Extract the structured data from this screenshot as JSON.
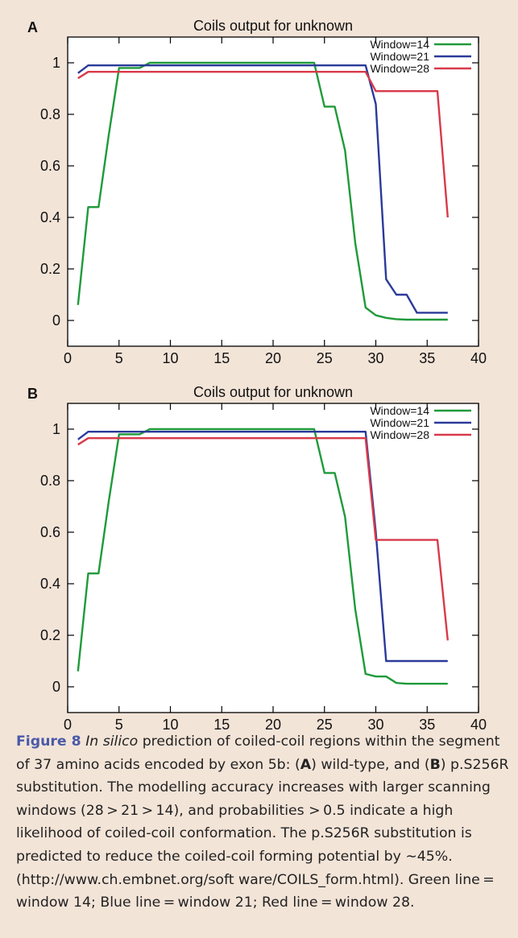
{
  "chart_data": [
    {
      "type": "line",
      "panel": "A",
      "title": "Coils output for unknown",
      "xlim": [
        0,
        40
      ],
      "ylim": [
        -0.1,
        1.1
      ],
      "xticks": [
        0,
        5,
        10,
        15,
        20,
        25,
        30,
        35,
        40
      ],
      "yticks": [
        0,
        0.2,
        0.4,
        0.6,
        0.8,
        1
      ],
      "legend_position": "top-right",
      "series": [
        {
          "name": "Window=14",
          "color": "#1f9a3a",
          "x": [
            1,
            2,
            3,
            4,
            5,
            6,
            7,
            8,
            9,
            10,
            11,
            12,
            13,
            14,
            15,
            16,
            17,
            18,
            19,
            20,
            21,
            22,
            23,
            24,
            25,
            26,
            27,
            28,
            29,
            30,
            31,
            32,
            33,
            34,
            35,
            36,
            37
          ],
          "y": [
            0.06,
            0.44,
            0.44,
            0.72,
            0.98,
            0.98,
            0.98,
            1.0,
            1.0,
            1.0,
            1.0,
            1.0,
            1.0,
            1.0,
            1.0,
            1.0,
            1.0,
            1.0,
            1.0,
            1.0,
            1.0,
            1.0,
            1.0,
            1.0,
            0.83,
            0.83,
            0.66,
            0.3,
            0.05,
            0.02,
            0.01,
            0.005,
            0.003,
            0.003,
            0.003,
            0.003,
            0.003
          ]
        },
        {
          "name": "Window=21",
          "color": "#2a3a9a",
          "x": [
            1,
            2,
            3,
            4,
            5,
            6,
            7,
            8,
            9,
            10,
            11,
            12,
            13,
            14,
            15,
            16,
            17,
            18,
            19,
            20,
            21,
            22,
            23,
            24,
            25,
            26,
            27,
            28,
            29,
            30,
            31,
            32,
            33,
            34,
            35,
            36,
            37
          ],
          "y": [
            0.96,
            0.99,
            0.99,
            0.99,
            0.99,
            0.99,
            0.99,
            0.99,
            0.99,
            0.99,
            0.99,
            0.99,
            0.99,
            0.99,
            0.99,
            0.99,
            0.99,
            0.99,
            0.99,
            0.99,
            0.99,
            0.99,
            0.99,
            0.99,
            0.99,
            0.99,
            0.99,
            0.99,
            0.99,
            0.84,
            0.16,
            0.1,
            0.1,
            0.03,
            0.03,
            0.03,
            0.03
          ]
        },
        {
          "name": "Window=28",
          "color": "#d83a4a",
          "x": [
            1,
            2,
            3,
            4,
            5,
            6,
            7,
            8,
            9,
            10,
            11,
            12,
            13,
            14,
            15,
            16,
            17,
            18,
            19,
            20,
            21,
            22,
            23,
            24,
            25,
            26,
            27,
            28,
            29,
            30,
            31,
            32,
            33,
            34,
            35,
            36,
            37
          ],
          "y": [
            0.94,
            0.965,
            0.965,
            0.965,
            0.965,
            0.965,
            0.965,
            0.965,
            0.965,
            0.965,
            0.965,
            0.965,
            0.965,
            0.965,
            0.965,
            0.965,
            0.965,
            0.965,
            0.965,
            0.965,
            0.965,
            0.965,
            0.965,
            0.965,
            0.965,
            0.965,
            0.965,
            0.965,
            0.965,
            0.89,
            0.89,
            0.89,
            0.89,
            0.89,
            0.89,
            0.89,
            0.4
          ]
        }
      ]
    },
    {
      "type": "line",
      "panel": "B",
      "title": "Coils output for unknown",
      "xlim": [
        0,
        40
      ],
      "ylim": [
        -0.1,
        1.1
      ],
      "xticks": [
        0,
        5,
        10,
        15,
        20,
        25,
        30,
        35,
        40
      ],
      "yticks": [
        0,
        0.2,
        0.4,
        0.6,
        0.8,
        1
      ],
      "legend_position": "top-right",
      "series": [
        {
          "name": "Window=14",
          "color": "#1f9a3a",
          "x": [
            1,
            2,
            3,
            4,
            5,
            6,
            7,
            8,
            9,
            10,
            11,
            12,
            13,
            14,
            15,
            16,
            17,
            18,
            19,
            20,
            21,
            22,
            23,
            24,
            25,
            26,
            27,
            28,
            29,
            30,
            31,
            32,
            33,
            34,
            35,
            36,
            37
          ],
          "y": [
            0.06,
            0.44,
            0.44,
            0.72,
            0.98,
            0.98,
            0.98,
            1.0,
            1.0,
            1.0,
            1.0,
            1.0,
            1.0,
            1.0,
            1.0,
            1.0,
            1.0,
            1.0,
            1.0,
            1.0,
            1.0,
            1.0,
            1.0,
            1.0,
            0.83,
            0.83,
            0.66,
            0.3,
            0.05,
            0.04,
            0.04,
            0.015,
            0.012,
            0.012,
            0.012,
            0.012,
            0.012
          ]
        },
        {
          "name": "Window=21",
          "color": "#2a3a9a",
          "x": [
            1,
            2,
            3,
            4,
            5,
            6,
            7,
            8,
            9,
            10,
            11,
            12,
            13,
            14,
            15,
            16,
            17,
            18,
            19,
            20,
            21,
            22,
            23,
            24,
            25,
            26,
            27,
            28,
            29,
            30,
            31,
            32,
            33,
            34,
            35,
            36,
            37
          ],
          "y": [
            0.96,
            0.99,
            0.99,
            0.99,
            0.99,
            0.99,
            0.99,
            0.99,
            0.99,
            0.99,
            0.99,
            0.99,
            0.99,
            0.99,
            0.99,
            0.99,
            0.99,
            0.99,
            0.99,
            0.99,
            0.99,
            0.99,
            0.99,
            0.99,
            0.99,
            0.99,
            0.99,
            0.99,
            0.99,
            0.6,
            0.1,
            0.1,
            0.1,
            0.1,
            0.1,
            0.1,
            0.1
          ]
        },
        {
          "name": "Window=28",
          "color": "#d83a4a",
          "x": [
            1,
            2,
            3,
            4,
            5,
            6,
            7,
            8,
            9,
            10,
            11,
            12,
            13,
            14,
            15,
            16,
            17,
            18,
            19,
            20,
            21,
            22,
            23,
            24,
            25,
            26,
            27,
            28,
            29,
            30,
            31,
            32,
            33,
            34,
            35,
            36,
            37
          ],
          "y": [
            0.94,
            0.965,
            0.965,
            0.965,
            0.965,
            0.965,
            0.965,
            0.965,
            0.965,
            0.965,
            0.965,
            0.965,
            0.965,
            0.965,
            0.965,
            0.965,
            0.965,
            0.965,
            0.965,
            0.965,
            0.965,
            0.965,
            0.965,
            0.965,
            0.965,
            0.965,
            0.965,
            0.965,
            0.965,
            0.57,
            0.57,
            0.57,
            0.57,
            0.57,
            0.57,
            0.57,
            0.18
          ]
        }
      ]
    }
  ],
  "caption": {
    "figure_label": "Figure 8",
    "parts": [
      {
        "t": " ",
        "s": "n"
      },
      {
        "t": "In silico",
        "s": "i"
      },
      {
        "t": " prediction of coiled-coil regions within the segment of 37 amino acids encoded by exon 5b: (",
        "s": "n"
      },
      {
        "t": "A",
        "s": "b"
      },
      {
        "t": ") wild-type, and (",
        "s": "n"
      },
      {
        "t": "B",
        "s": "b"
      },
      {
        "t": ") p.S256R substitution. The modelling accuracy increases with larger scanning windows (28 > 21 > 14), and probabilities > 0.5 indicate a high likelihood of coiled-coil conformation. The p.S256R substitution is predicted to reduce the coiled-coil forming potential by ∼45%. (http://www.ch.embnet.org/soft ware/COILS_form.html). Green line = window 14; Blue line = window 21; Red line = window 28.",
        "s": "n"
      }
    ]
  },
  "colors": {
    "figure_background": "#f3e4d8",
    "plot_background": "#ffffff",
    "caption_label": "#4a5aa8"
  }
}
